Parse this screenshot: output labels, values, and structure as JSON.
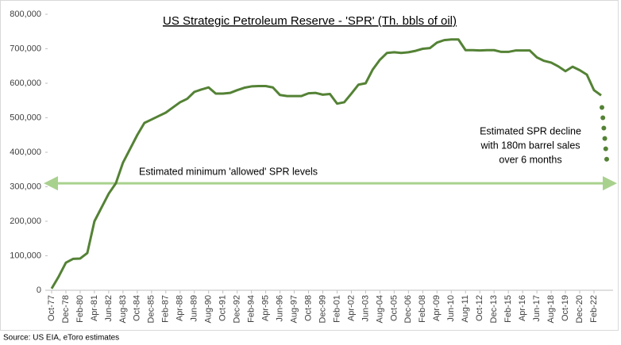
{
  "chart_data": {
    "type": "line",
    "title": "US Strategic Petroleum Reserve - 'SPR' (Th. bbls of oil)",
    "source": "Source: US EIA, eToro estimates",
    "categories": [
      "Oct-77",
      null,
      "Dec-78",
      null,
      "Feb-80",
      null,
      "Apr-81",
      null,
      "Jun-82",
      null,
      "Aug-83",
      null,
      "Oct-84",
      null,
      "Dec-85",
      null,
      "Feb-87",
      null,
      "Apr-88",
      null,
      "Jun-89",
      null,
      "Aug-90",
      null,
      "Oct-91",
      null,
      "Dec-92",
      null,
      "Feb-94",
      null,
      "Apr-95",
      null,
      "Jun-96",
      null,
      "Aug-97",
      null,
      "Oct-98",
      null,
      "Dec-99",
      null,
      "Feb-01",
      null,
      "Apr-02",
      null,
      "Jun-03",
      null,
      "Aug-04",
      null,
      "Oct-05",
      null,
      "Dec-06",
      null,
      "Feb-08",
      null,
      "Apr-09",
      null,
      "Jun-10",
      null,
      "Aug-11",
      null,
      "Oct-12",
      null,
      "Dec-13",
      null,
      "Feb-15",
      null,
      "Apr-16",
      null,
      "Jun-17",
      null,
      "Aug-18",
      null,
      "Oct-19",
      null,
      "Dec-20",
      null,
      "Feb-22",
      null
    ],
    "values": [
      5000,
      40000,
      80000,
      91000,
      92000,
      108000,
      200000,
      240000,
      280000,
      310000,
      370000,
      410000,
      450000,
      485000,
      495000,
      505000,
      515000,
      530000,
      545000,
      555000,
      575000,
      582000,
      588000,
      570000,
      570000,
      572000,
      580000,
      587000,
      591000,
      592000,
      592000,
      588000,
      566000,
      563000,
      563000,
      563000,
      571000,
      572000,
      567000,
      569000,
      541000,
      545000,
      570000,
      596000,
      600000,
      640000,
      668000,
      688000,
      690000,
      688000,
      690000,
      694000,
      700000,
      702000,
      718000,
      725000,
      727000,
      727000,
      696000,
      696000,
      695000,
      696000,
      696000,
      691000,
      691000,
      695000,
      695000,
      695000,
      675000,
      665000,
      660000,
      649000,
      635000,
      648000,
      638000,
      625000,
      580000,
      565000
    ],
    "color": "#548235",
    "estimates": {
      "values": [
        530000,
        500000,
        470000,
        440000,
        410000,
        380000
      ],
      "color": "#548235"
    },
    "estimate_annotation": [
      "Estimated SPR decline",
      "with 180m barrel sales",
      "over 6 months"
    ],
    "minimum_level": {
      "value": 310000,
      "label": "Estimated minimum 'allowed' SPR levels",
      "color": "#a9d18e"
    },
    "ylim": [
      0,
      800000
    ],
    "yticks": [
      0,
      {
        "value": 100000,
        "label": "100,000"
      },
      {
        "value": 200000,
        "label": "200,000"
      },
      {
        "value": 300000,
        "label": "300,000"
      },
      {
        "value": 400000,
        "label": "400,000"
      },
      {
        "value": 500000,
        "label": "500,000"
      },
      {
        "value": 600000,
        "label": "600,000"
      },
      {
        "value": 700000,
        "label": "700,000"
      },
      {
        "value": 800000,
        "label": "800,000"
      }
    ],
    "grid": false
  }
}
